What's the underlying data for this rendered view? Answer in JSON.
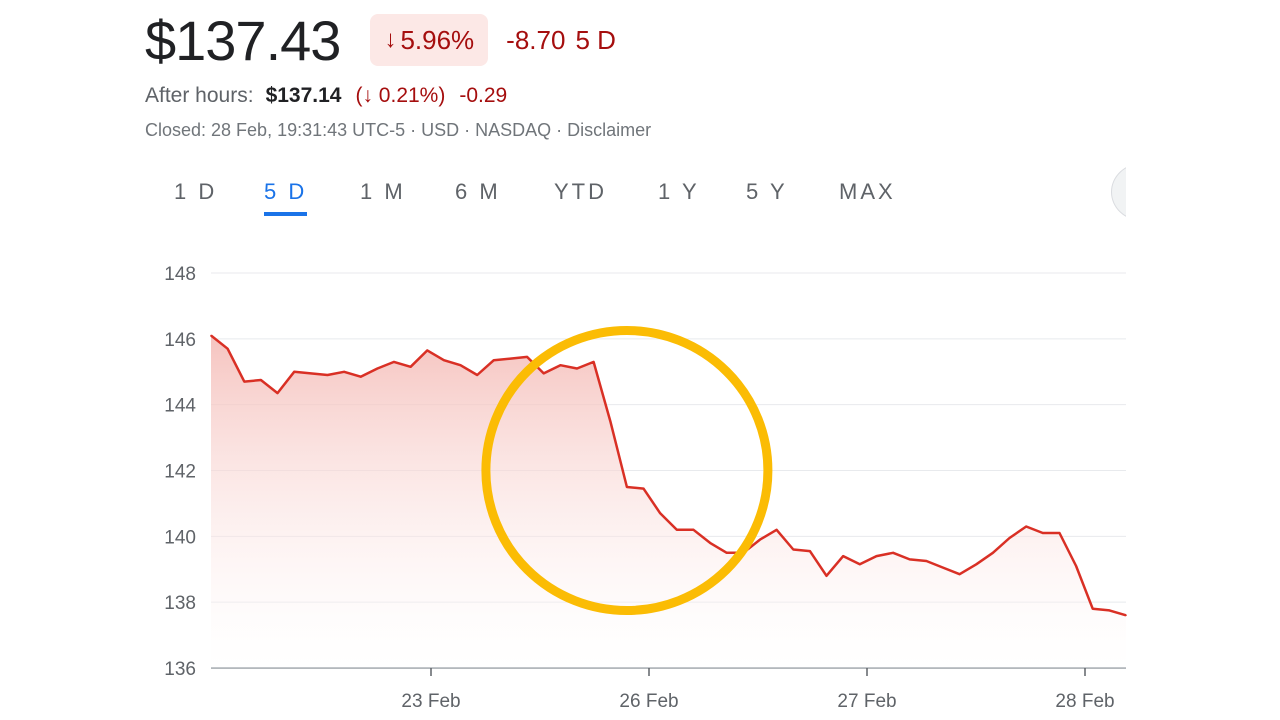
{
  "header": {
    "price": "$137.43",
    "change_pct": "5.96%",
    "change_abs": "-8.70",
    "period": "5 D",
    "after_hours_label": "After hours:",
    "after_hours_price": "$137.14",
    "after_hours_pct": "(↓ 0.21%)",
    "after_hours_abs": "-0.29",
    "closed_line": "Closed: 28 Feb, 19:31:43 UTC-5 · USD · NASDAQ · Disclaimer"
  },
  "tabs": [
    {
      "label": "1 D"
    },
    {
      "label": "5 D",
      "active": true
    },
    {
      "label": "1 M"
    },
    {
      "label": "6 M"
    },
    {
      "label": "YTD"
    },
    {
      "label": "1 Y"
    },
    {
      "label": "5 Y"
    },
    {
      "label": "MAX"
    }
  ],
  "colors": {
    "line": "#d93025",
    "fill_top": "#f4b9b4",
    "grid": "#e8eaed",
    "highlight_circle": "#fbbc04"
  },
  "chart_data": {
    "type": "area",
    "title": "",
    "xlabel": "",
    "ylabel": "",
    "ylim": [
      136,
      148
    ],
    "yticks": [
      136,
      138,
      140,
      142,
      144,
      146,
      148
    ],
    "xticks": [
      "23 Feb",
      "26 Feb",
      "27 Feb",
      "28 Feb"
    ],
    "grid": true,
    "series": [
      {
        "values": [
          146.1,
          145.7,
          144.7,
          144.75,
          144.35,
          145.0,
          144.95,
          144.9,
          145.0,
          144.85,
          145.1,
          145.3,
          145.15,
          145.65,
          145.35,
          145.2,
          144.9,
          145.35,
          145.4,
          145.45,
          144.95,
          145.2,
          145.1,
          145.3,
          143.5,
          141.5,
          141.45,
          140.7,
          140.2,
          140.2,
          139.8,
          139.5,
          139.5,
          139.9,
          140.2,
          139.6,
          139.55,
          138.8,
          139.4,
          139.15,
          139.4,
          139.5,
          139.3,
          139.25,
          139.05,
          138.85,
          139.15,
          139.5,
          139.95,
          140.3,
          140.1,
          140.1,
          139.1,
          137.8,
          137.75,
          137.6
        ]
      }
    ],
    "annotations": [
      {
        "type": "circle",
        "label": "",
        "x_index": 25,
        "y": 142
      }
    ]
  }
}
